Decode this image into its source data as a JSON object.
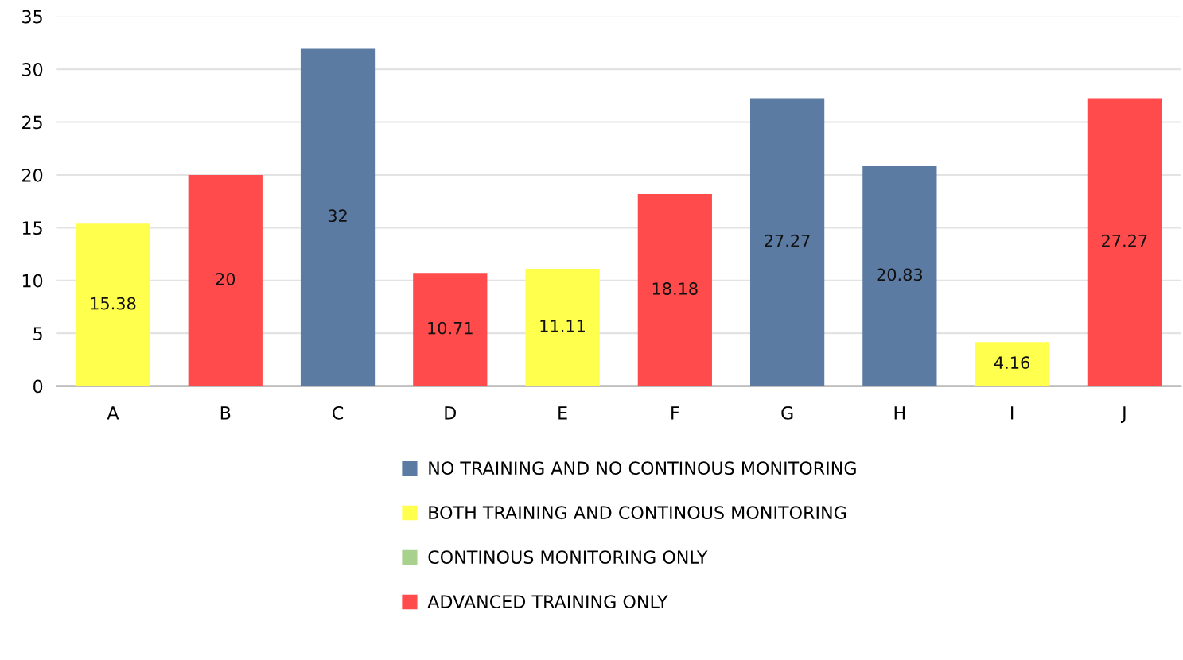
{
  "chart_data": {
    "type": "bar",
    "categories": [
      "A",
      "B",
      "C",
      "D",
      "E",
      "F",
      "G",
      "H",
      "I",
      "J"
    ],
    "series": [
      {
        "name": "NO TRAINING AND NO CONTINOUS MONITORING",
        "color": "#5b7ba3",
        "values": [
          null,
          null,
          32,
          null,
          null,
          null,
          27.27,
          20.83,
          null,
          null
        ]
      },
      {
        "name": "BOTH TRAINING AND CONTINOUS MONITORING",
        "color": "#ffff4d",
        "values": [
          15.38,
          null,
          null,
          null,
          11.11,
          null,
          null,
          null,
          4.16,
          null
        ]
      },
      {
        "name": "CONTINOUS MONITORING ONLY",
        "color": "#a9d18e",
        "values": [
          null,
          null,
          null,
          null,
          null,
          null,
          null,
          null,
          null,
          null
        ]
      },
      {
        "name": "ADVANCED TRAINING ONLY",
        "color": "#ff4b4b",
        "values": [
          null,
          20,
          null,
          10.71,
          null,
          18.18,
          null,
          null,
          null,
          27.27
        ]
      }
    ],
    "ylim": [
      0,
      35
    ],
    "yticks": [
      0,
      5,
      10,
      15,
      20,
      25,
      30,
      35
    ],
    "grid": "y",
    "legend": "bottom",
    "data_labels": true
  }
}
